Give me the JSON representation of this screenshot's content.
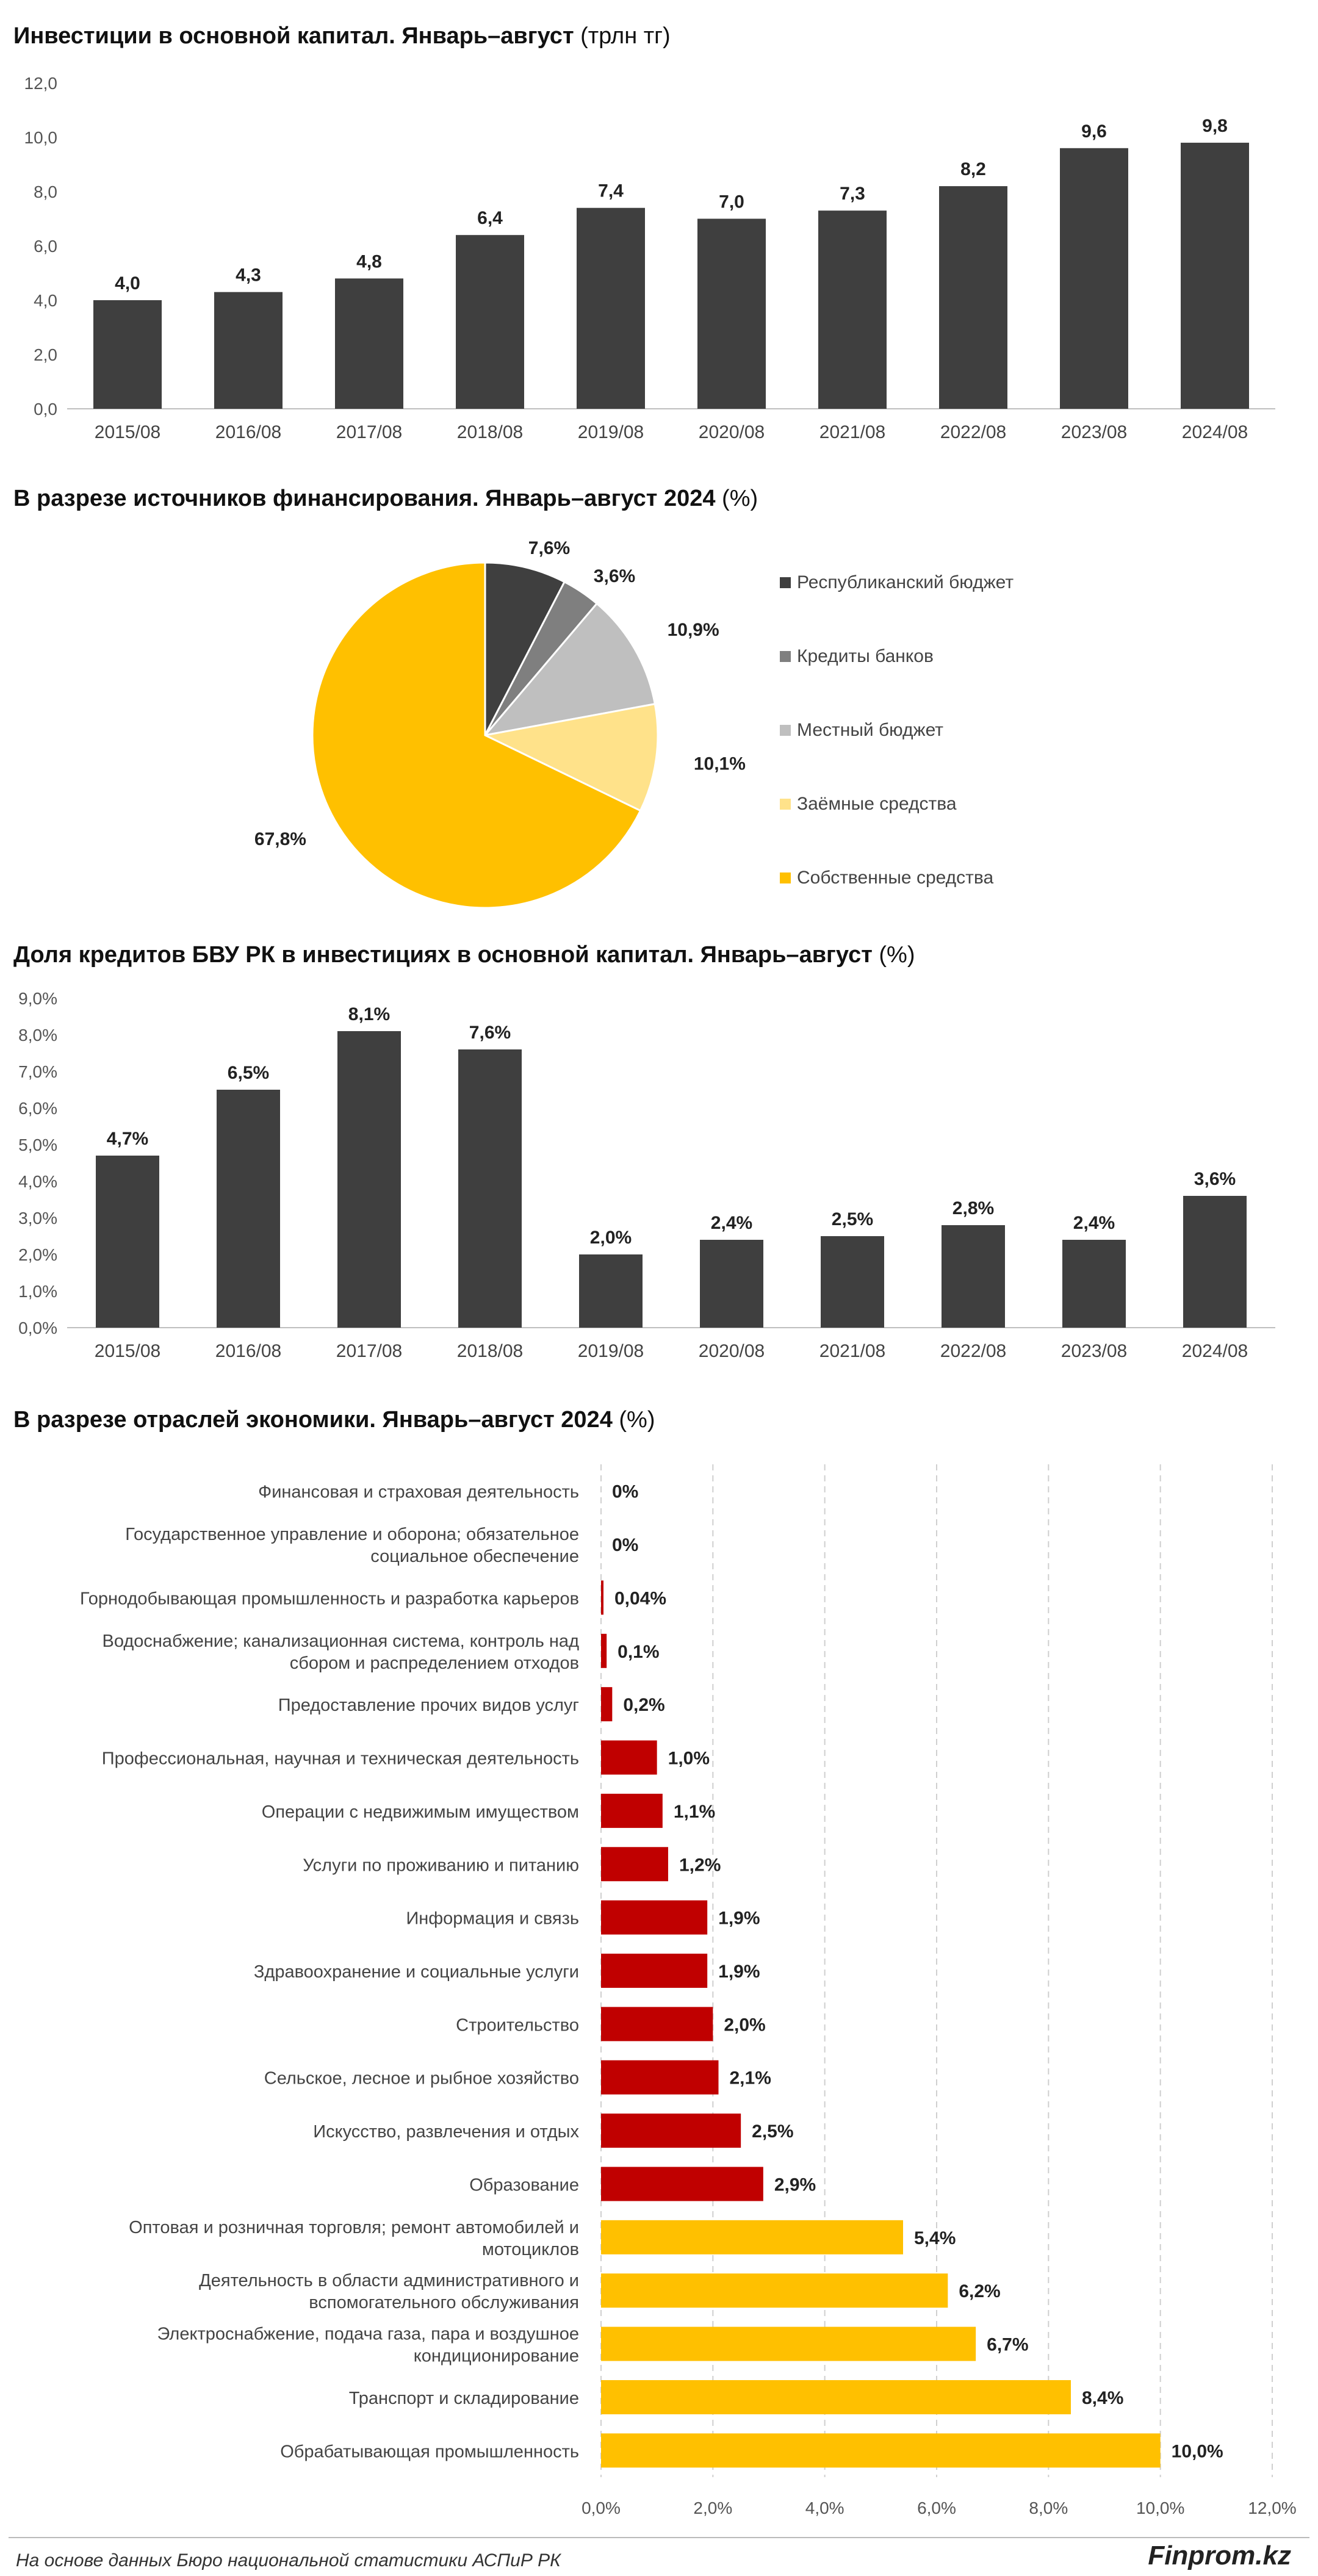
{
  "charts": [
    {
      "id": "investments",
      "title_bold": "Инвестиции в основной капитал. Январь–август",
      "title_unit": "(трлн тг)"
    },
    {
      "id": "sources",
      "title_bold": "В разрезе источников финансирования. Январь–август 2024",
      "title_unit": "(%)"
    },
    {
      "id": "bank_share",
      "title_bold": "Доля кредитов БВУ РК в инвестициях в основной капитал. Январь–август",
      "title_unit": "(%)"
    },
    {
      "id": "industries",
      "title_bold": "В разрезе отраслей экономики. Январь–август 2024",
      "title_unit": "(%)"
    }
  ],
  "chart_data": [
    {
      "type": "bar",
      "categories": [
        "2015/08",
        "2016/08",
        "2017/08",
        "2018/08",
        "2019/08",
        "2020/08",
        "2021/08",
        "2022/08",
        "2023/08",
        "2024/08"
      ],
      "values": [
        4.0,
        4.3,
        4.8,
        6.4,
        7.4,
        7.0,
        7.3,
        8.2,
        9.6,
        9.8
      ],
      "value_labels": [
        "4,0",
        "4,3",
        "4,8",
        "6,4",
        "7,4",
        "7,0",
        "7,3",
        "8,2",
        "9,6",
        "9,8"
      ],
      "ylim": [
        0,
        12
      ],
      "yticks": [
        "0,0",
        "2,0",
        "4,0",
        "6,0",
        "8,0",
        "10,0",
        "12,0"
      ],
      "grid": false,
      "color": "#3f3f3f"
    },
    {
      "type": "pie",
      "slices": [
        {
          "name": "Республиканский бюджет",
          "value": 7.6,
          "label": "7,6%",
          "color": "#3f3f3f"
        },
        {
          "name": "Кредиты банков",
          "value": 3.6,
          "label": "3,6%",
          "color": "#7f7f7f"
        },
        {
          "name": "Местный бюджет",
          "value": 10.9,
          "label": "10,9%",
          "color": "#bfbfbf"
        },
        {
          "name": "Заёмные средства",
          "value": 10.1,
          "label": "10,1%",
          "color": "#ffe28a"
        },
        {
          "name": "Собственные средства",
          "value": 67.8,
          "label": "67,8%",
          "color": "#ffc000"
        }
      ],
      "legend_position": "right"
    },
    {
      "type": "bar",
      "categories": [
        "2015/08",
        "2016/08",
        "2017/08",
        "2018/08",
        "2019/08",
        "2020/08",
        "2021/08",
        "2022/08",
        "2023/08",
        "2024/08"
      ],
      "values": [
        4.7,
        6.5,
        8.1,
        7.6,
        2.0,
        2.4,
        2.5,
        2.8,
        2.4,
        3.6
      ],
      "value_labels": [
        "4,7%",
        "6,5%",
        "8,1%",
        "7,6%",
        "2,0%",
        "2,4%",
        "2,5%",
        "2,8%",
        "2,4%",
        "3,6%"
      ],
      "ylim": [
        0,
        9
      ],
      "yticks": [
        "0,0%",
        "1,0%",
        "2,0%",
        "3,0%",
        "4,0%",
        "5,0%",
        "6,0%",
        "7,0%",
        "8,0%",
        "9,0%"
      ],
      "grid": false,
      "color": "#3f3f3f"
    },
    {
      "type": "bar",
      "orientation": "horizontal",
      "categories": [
        "Финансовая и страховая деятельность",
        "Государственное управление и оборона; обязательное|социальное обеспечение",
        "Горнодобывающая промышленность и разработка карьеров",
        "Водоснабжение; канализационная система, контроль над|сбором и распределением отходов",
        "Предоставление прочих видов услуг",
        "Профессиональная, научная и техническая деятельность",
        "Операции с недвижимым имуществом",
        "Услуги по проживанию и питанию",
        "Информация и связь",
        "Здравоохранение и социальные услуги",
        "Строительство",
        "Сельское, лесное и рыбное хозяйство",
        "Искусство, развлечения и отдых",
        "Образование",
        "Оптовая и розничная торговля; ремонт автомобилей и|мотоциклов",
        "Деятельность в области административного и|вспомогательного обслуживания",
        "Электроснабжение, подача газа, пара и воздушное|кондиционирование",
        "Транспорт и складирование",
        "Обрабатывающая промышленность"
      ],
      "values": [
        0,
        0,
        0.04,
        0.1,
        0.2,
        1.0,
        1.1,
        1.2,
        1.9,
        1.9,
        2.0,
        2.1,
        2.5,
        2.9,
        5.4,
        6.2,
        6.7,
        8.4,
        10.0
      ],
      "value_labels": [
        "0%",
        "0%",
        "0,04%",
        "0,1%",
        "0,2%",
        "1,0%",
        "1,1%",
        "1,2%",
        "1,9%",
        "1,9%",
        "2,0%",
        "2,1%",
        "2,5%",
        "2,9%",
        "5,4%",
        "6,2%",
        "6,7%",
        "8,4%",
        "10,0%"
      ],
      "bar_colors": [
        "#c00000",
        "#c00000",
        "#c00000",
        "#c00000",
        "#c00000",
        "#c00000",
        "#c00000",
        "#c00000",
        "#c00000",
        "#c00000",
        "#c00000",
        "#c00000",
        "#c00000",
        "#c00000",
        "#ffc000",
        "#ffc000",
        "#ffc000",
        "#ffc000",
        "#ffc000"
      ],
      "xlim": [
        0,
        12
      ],
      "xticks": [
        "0,0%",
        "2,0%",
        "4,0%",
        "6,0%",
        "8,0%",
        "10,0%",
        "12,0%"
      ],
      "grid": true
    }
  ],
  "footer": {
    "note": "На основе данных Бюро национальной статистики АСПиР РК",
    "brand": "Finprom.kz"
  }
}
